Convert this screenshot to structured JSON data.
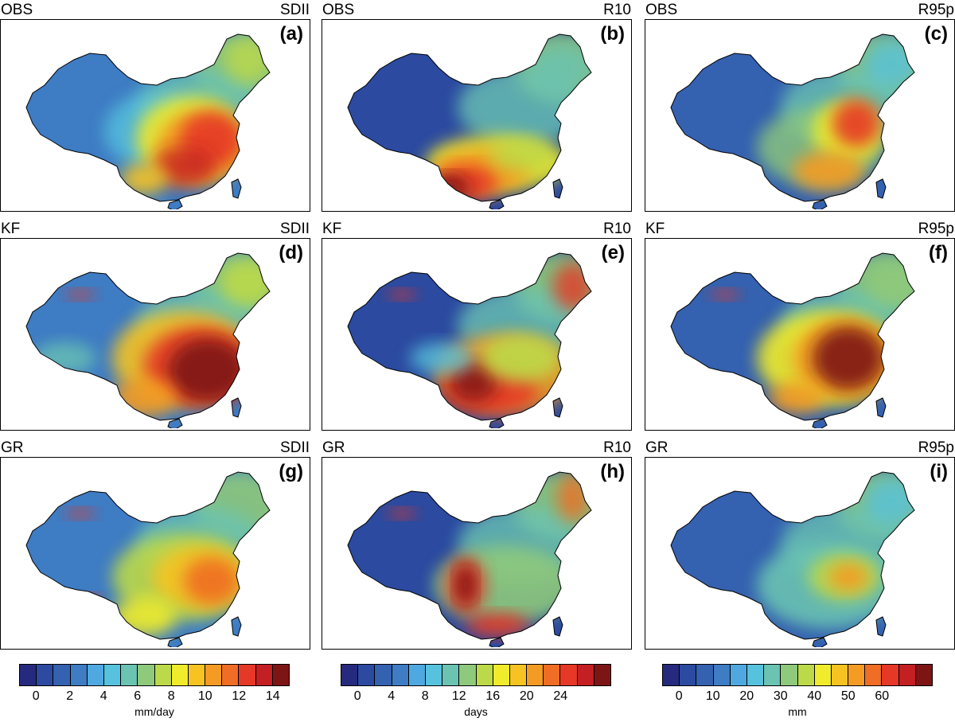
{
  "panels": [
    {
      "model": "OBS",
      "index": "SDII",
      "label": "(a)",
      "pattern": "obs-sdii"
    },
    {
      "model": "OBS",
      "index": "R10",
      "label": "(b)",
      "pattern": "obs-r10"
    },
    {
      "model": "OBS",
      "index": "R95p",
      "label": "(c)",
      "pattern": "obs-r95"
    },
    {
      "model": "KF",
      "index": "SDII",
      "label": "(d)",
      "pattern": "kf-sdii"
    },
    {
      "model": "KF",
      "index": "R10",
      "label": "(e)",
      "pattern": "kf-r10"
    },
    {
      "model": "KF",
      "index": "R95p",
      "label": "(f)",
      "pattern": "kf-r95"
    },
    {
      "model": "GR",
      "index": "SDII",
      "label": "(g)",
      "pattern": "gr-sdii"
    },
    {
      "model": "GR",
      "index": "R10",
      "label": "(h)",
      "pattern": "gr-r10"
    },
    {
      "model": "GR",
      "index": "R95p",
      "label": "(i)",
      "pattern": "gr-r95"
    }
  ],
  "colorbars": [
    {
      "unit": "mm/day",
      "ticks": [
        "0",
        "2",
        "4",
        "6",
        "8",
        "10",
        "12",
        "14"
      ],
      "colors": [
        "#262a7e",
        "#2b4aa0",
        "#3461b0",
        "#3e7cc4",
        "#4fa9e0",
        "#57c2dd",
        "#6bc3b2",
        "#8ec97c",
        "#bcd94a",
        "#f0ec2c",
        "#f6c322",
        "#f49b24",
        "#ef6d24",
        "#e53826",
        "#c41f22",
        "#7d1515"
      ]
    },
    {
      "unit": "days",
      "ticks": [
        "0",
        "4",
        "8",
        "12",
        "16",
        "20",
        "24"
      ],
      "colors": [
        "#262a7e",
        "#2b4aa0",
        "#3461b0",
        "#3e7cc4",
        "#4fa9e0",
        "#57c2dd",
        "#6bc3b2",
        "#8ec97c",
        "#bcd94a",
        "#f0ec2c",
        "#f6c322",
        "#f49b24",
        "#ef6d24",
        "#e53826",
        "#c41f22",
        "#7d1515"
      ]
    },
    {
      "unit": "mm",
      "ticks": [
        "0",
        "10",
        "20",
        "30",
        "40",
        "50",
        "60"
      ],
      "colors": [
        "#262a7e",
        "#2b4aa0",
        "#3461b0",
        "#3e7cc4",
        "#4fa9e0",
        "#57c2dd",
        "#6bc3b2",
        "#8ec97c",
        "#bcd94a",
        "#f0ec2c",
        "#f6c322",
        "#f49b24",
        "#ef6d24",
        "#e53826",
        "#c41f22",
        "#7d1515"
      ]
    }
  ]
}
